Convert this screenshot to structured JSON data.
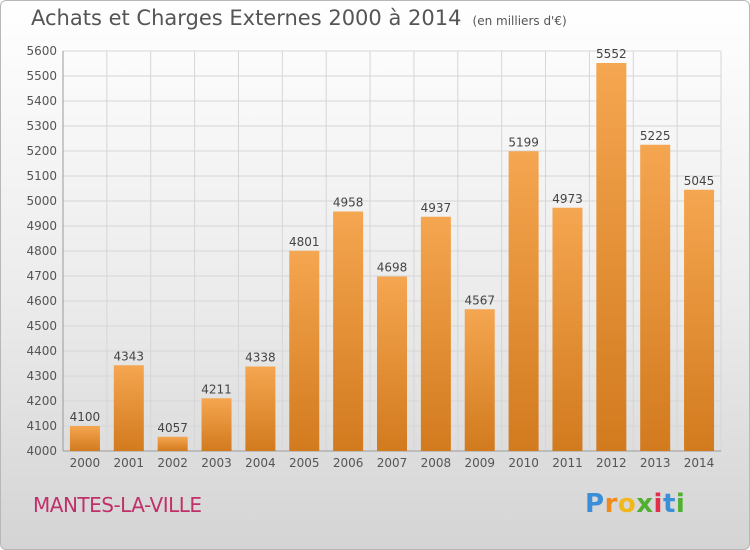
{
  "title": {
    "main": "Achats et Charges Externes 2000 à 2014",
    "unit": "(en milliers d'€)"
  },
  "city": "MANTES-LA-VILLE",
  "brand": {
    "letters": [
      "P",
      "r",
      "o",
      "x",
      "i",
      "t",
      "i"
    ]
  },
  "colors": {
    "bar_top": "#f5a650",
    "bar_bottom": "#d27a1e",
    "city": "#c0306a",
    "grid": "#d6d6d6",
    "text": "#555555"
  },
  "chart_data": {
    "type": "bar",
    "categories": [
      "2000",
      "2001",
      "2002",
      "2003",
      "2004",
      "2005",
      "2006",
      "2007",
      "2008",
      "2009",
      "2010",
      "2011",
      "2012",
      "2013",
      "2014"
    ],
    "values": [
      4100,
      4343,
      4057,
      4211,
      4338,
      4801,
      4958,
      4698,
      4937,
      4567,
      5199,
      4973,
      5552,
      5225,
      5045
    ],
    "ylim": [
      4000,
      5600
    ],
    "yticks": [
      4000,
      4100,
      4200,
      4300,
      4400,
      4500,
      4600,
      4700,
      4800,
      4900,
      5000,
      5100,
      5200,
      5300,
      5400,
      5500,
      5600
    ],
    "grid": true,
    "data_labels": true
  }
}
